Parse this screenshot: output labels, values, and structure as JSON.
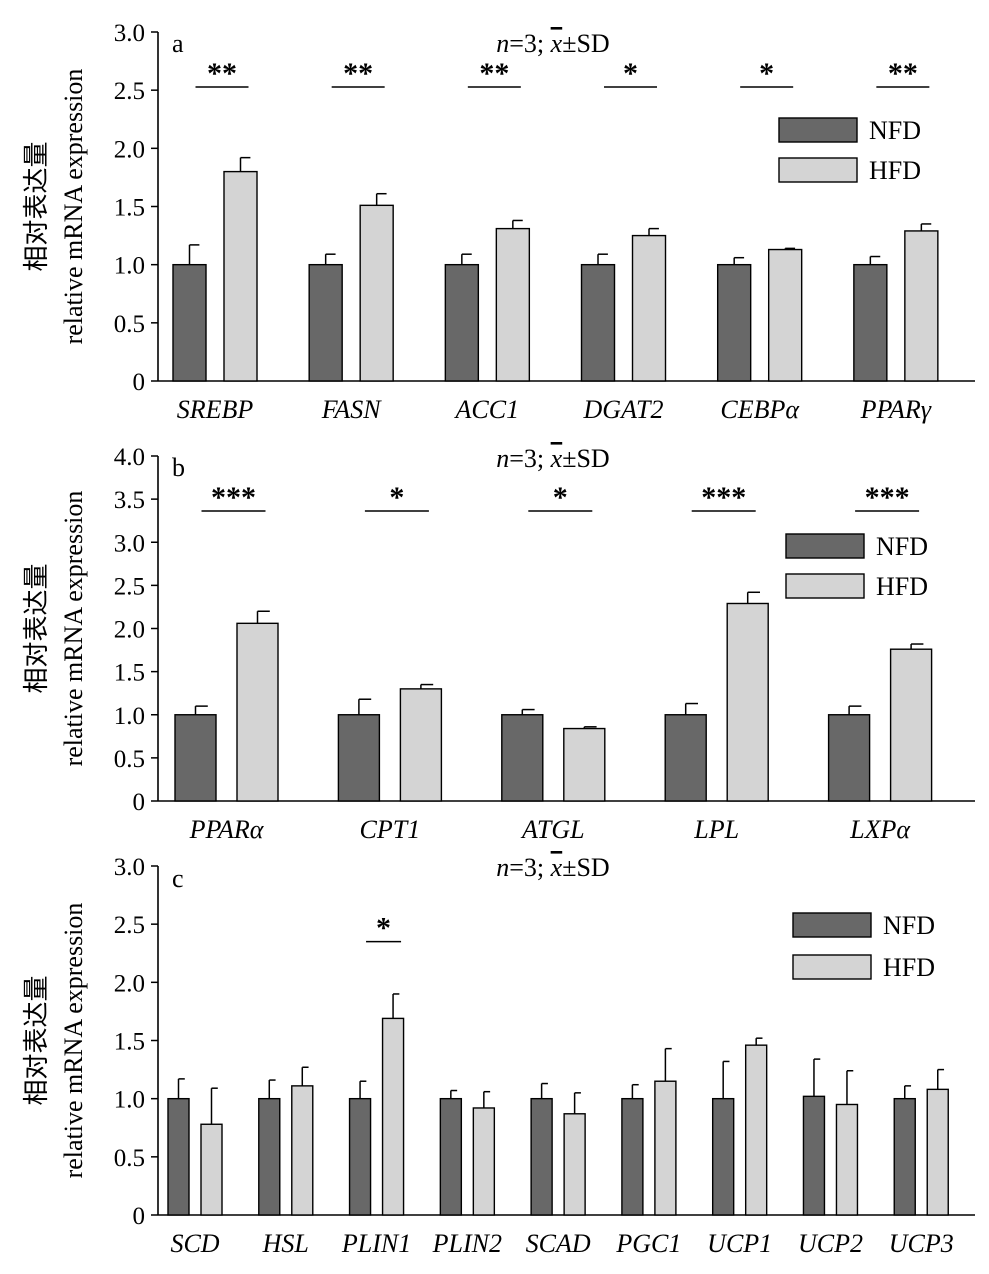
{
  "colors": {
    "NFD": "#686868",
    "HFD": "#d4d4d4",
    "axis": "#000000"
  },
  "chart_data": [
    {
      "type": "bar",
      "panel": "a",
      "stats_label": "n=3; x̄±SD",
      "ylabel_cn": "相对表达量",
      "ylabel_en": "relative mRNA expression",
      "ylim": [
        0,
        3.0
      ],
      "yticks": [
        0,
        0.5,
        1.0,
        1.5,
        2.0,
        2.5,
        3.0
      ],
      "ytick_labels": [
        "0",
        "0.5",
        "1.0",
        "1.5",
        "2.0",
        "2.5",
        "3.0"
      ],
      "legend": {
        "position": "right",
        "labels": [
          "NFD",
          "HFD"
        ]
      },
      "categories": [
        "SREBP",
        "FASN",
        "ACC1",
        "DGAT2",
        "CEBPα",
        "PPARγ"
      ],
      "series": [
        {
          "name": "NFD",
          "values": [
            1.0,
            1.0,
            1.0,
            1.0,
            1.0,
            1.0
          ],
          "errors": [
            0.17,
            0.09,
            0.09,
            0.09,
            0.06,
            0.07
          ]
        },
        {
          "name": "HFD",
          "values": [
            1.8,
            1.51,
            1.31,
            1.25,
            1.13,
            1.29
          ],
          "errors": [
            0.12,
            0.1,
            0.07,
            0.06,
            0.01,
            0.06
          ]
        }
      ],
      "significance": [
        "**",
        "**",
        "**",
        "*",
        "*",
        "**"
      ]
    },
    {
      "type": "bar",
      "panel": "b",
      "stats_label": "n=3; x̄±SD",
      "ylabel_cn": "相对表达量",
      "ylabel_en": "relative mRNA expression",
      "ylim": [
        0,
        4.0
      ],
      "yticks": [
        0,
        0.5,
        1.0,
        1.5,
        2.0,
        2.5,
        3.0,
        3.5,
        4.0
      ],
      "ytick_labels": [
        "0",
        "0.5",
        "1.0",
        "1.5",
        "2.0",
        "2.5",
        "3.0",
        "3.5",
        "4.0"
      ],
      "legend": {
        "position": "right",
        "labels": [
          "NFD",
          "HFD"
        ]
      },
      "categories": [
        "PPARα",
        "CPT1",
        "ATGL",
        "LPL",
        "LXPα"
      ],
      "series": [
        {
          "name": "NFD",
          "values": [
            1.0,
            1.0,
            1.0,
            1.0,
            1.0
          ],
          "errors": [
            0.1,
            0.18,
            0.06,
            0.13,
            0.1
          ]
        },
        {
          "name": "HFD",
          "values": [
            2.06,
            1.3,
            0.84,
            2.29,
            1.76
          ],
          "errors": [
            0.14,
            0.05,
            0.02,
            0.13,
            0.06
          ]
        }
      ],
      "significance": [
        "***",
        "*",
        "*",
        "***",
        "***"
      ]
    },
    {
      "type": "bar",
      "panel": "c",
      "stats_label": "n=3; x̄±SD",
      "ylabel_cn": "相对表达量",
      "ylabel_en": "relative mRNA expression",
      "ylim": [
        0,
        3.0
      ],
      "yticks": [
        0,
        0.5,
        1.0,
        1.5,
        2.0,
        2.5,
        3.0
      ],
      "ytick_labels": [
        "0",
        "0.5",
        "1.0",
        "1.5",
        "2.0",
        "2.5",
        "3.0"
      ],
      "legend": {
        "position": "right",
        "labels": [
          "NFD",
          "HFD"
        ]
      },
      "categories": [
        "SCD",
        "HSL",
        "PLIN1",
        "PLIN2",
        "SCAD",
        "PGC1",
        "UCP1",
        "UCP2",
        "UCP3"
      ],
      "series": [
        {
          "name": "NFD",
          "values": [
            1.0,
            1.0,
            1.0,
            1.0,
            1.0,
            1.0,
            1.0,
            1.02,
            1.0
          ],
          "errors": [
            0.17,
            0.16,
            0.15,
            0.07,
            0.13,
            0.12,
            0.32,
            0.32,
            0.11
          ]
        },
        {
          "name": "HFD",
          "values": [
            0.78,
            1.11,
            1.69,
            0.92,
            0.87,
            1.15,
            1.46,
            0.95,
            1.08
          ],
          "errors": [
            0.31,
            0.16,
            0.21,
            0.14,
            0.18,
            0.28,
            0.06,
            0.29,
            0.17
          ]
        }
      ],
      "significance": [
        "",
        "",
        "*",
        "",
        "",
        "",
        "",
        "",
        ""
      ]
    }
  ]
}
